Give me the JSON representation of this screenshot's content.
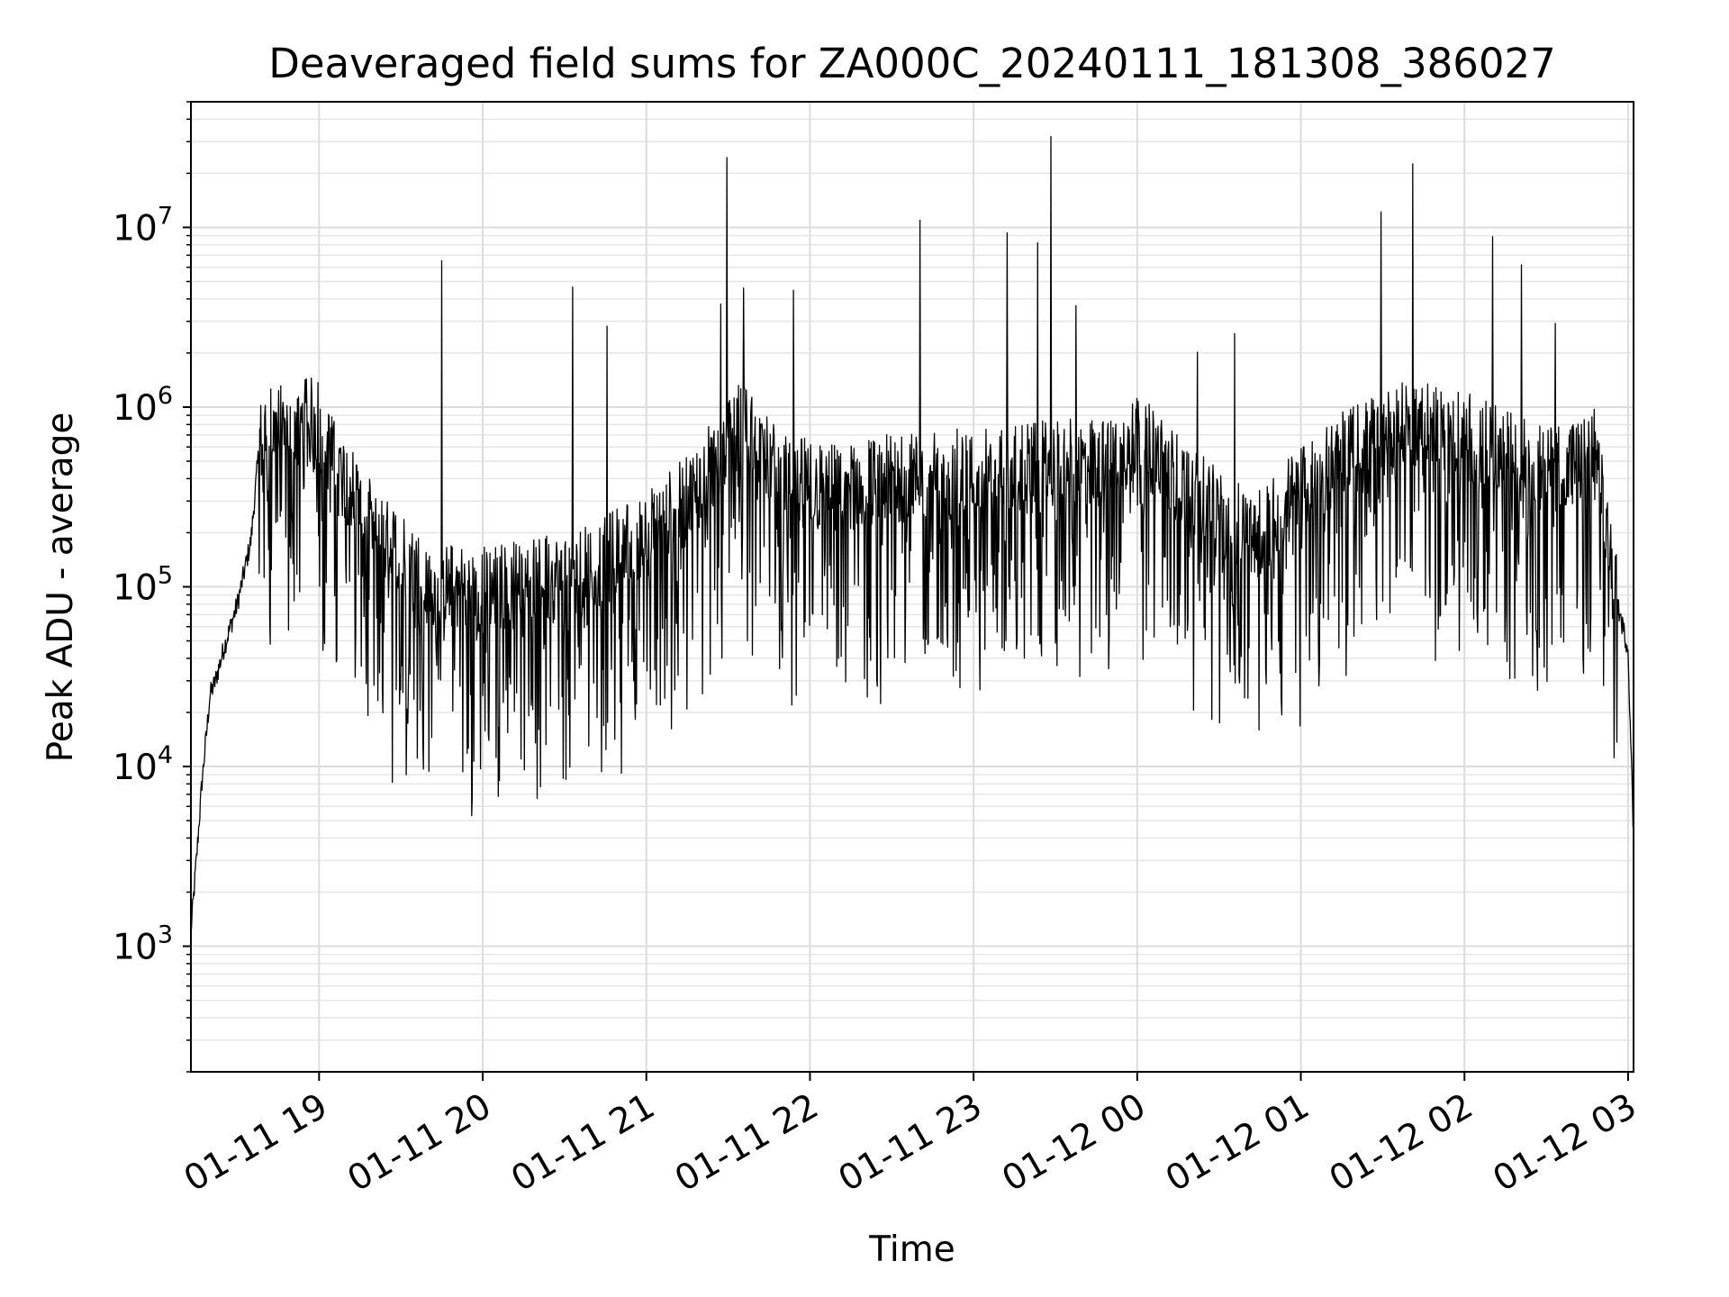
{
  "chart_data": {
    "type": "line",
    "title": "Deaveraged field sums for ZA000C_20240111_181308_386027",
    "xlabel": "Time",
    "ylabel": "Peak ADU - average",
    "yscale": "log",
    "xlim": [
      "2024-01-11T18:13",
      "2024-01-12T03:02"
    ],
    "ylim": [
      200,
      50000000
    ],
    "grid": true,
    "line_color": "#000000",
    "x_tick_labels": [
      {
        "t": "2024-01-11T19:00",
        "label": "01-11 19"
      },
      {
        "t": "2024-01-11T20:00",
        "label": "01-11 20"
      },
      {
        "t": "2024-01-11T21:00",
        "label": "01-11 21"
      },
      {
        "t": "2024-01-11T22:00",
        "label": "01-11 22"
      },
      {
        "t": "2024-01-11T23:00",
        "label": "01-11 23"
      },
      {
        "t": "2024-01-12T00:00",
        "label": "01-12 00"
      },
      {
        "t": "2024-01-12T01:00",
        "label": "01-12 01"
      },
      {
        "t": "2024-01-12T02:00",
        "label": "01-12 02"
      },
      {
        "t": "2024-01-12T03:00",
        "label": "01-12 03"
      }
    ],
    "y_tick_labels": [
      {
        "value": 1000,
        "base": "10",
        "exp": "3"
      },
      {
        "value": 10000,
        "base": "10",
        "exp": "4"
      },
      {
        "value": 100000,
        "base": "10",
        "exp": "5"
      },
      {
        "value": 1000000,
        "base": "10",
        "exp": "6"
      },
      {
        "value": 10000000,
        "base": "10",
        "exp": "7"
      }
    ],
    "series": [
      {
        "x": [
          "2024-01-11T18:13",
          "2024-01-11T18:15",
          "2024-01-11T18:17",
          "2024-01-11T18:20",
          "2024-01-11T18:22",
          "2024-01-11T18:25",
          "2024-01-11T18:30",
          "2024-01-11T18:35",
          "2024-01-11T18:38",
          "2024-01-11T18:40",
          "2024-01-11T18:45",
          "2024-01-11T18:50",
          "2024-01-11T18:55",
          "2024-01-11T19:00",
          "2024-01-11T19:05",
          "2024-01-11T19:10",
          "2024-01-11T19:15",
          "2024-01-11T19:20",
          "2024-01-11T19:30",
          "2024-01-11T19:40",
          "2024-01-11T20:00",
          "2024-01-11T20:20",
          "2024-01-11T20:40",
          "2024-01-11T21:00",
          "2024-01-11T21:15",
          "2024-01-11T21:25",
          "2024-01-11T21:35",
          "2024-01-11T21:50",
          "2024-01-11T22:10",
          "2024-01-11T22:30",
          "2024-01-11T22:50",
          "2024-01-11T23:10",
          "2024-01-11T23:30",
          "2024-01-11T23:50",
          "2024-01-12T00:00",
          "2024-01-12T00:15",
          "2024-01-12T00:30",
          "2024-01-12T00:45",
          "2024-01-12T01:00",
          "2024-01-12T01:20",
          "2024-01-12T01:40",
          "2024-01-12T02:00",
          "2024-01-12T02:15",
          "2024-01-12T02:30",
          "2024-01-12T02:45",
          "2024-01-12T02:48",
          "2024-01-12T02:52",
          "2024-01-12T02:56",
          "2024-01-12T03:00",
          "2024-01-12T03:02"
        ],
        "y": [
          1200,
          3000,
          8000,
          25000,
          30000,
          45000,
          80000,
          180000,
          600000,
          700000,
          750000,
          800000,
          820000,
          850000,
          500000,
          400000,
          300000,
          200000,
          150000,
          100000,
          100000,
          105000,
          130000,
          200000,
          300000,
          500000,
          800000,
          400000,
          350000,
          400000,
          420000,
          450000,
          480000,
          500000,
          700000,
          400000,
          250000,
          200000,
          350000,
          600000,
          800000,
          700000,
          550000,
          450000,
          500000,
          600000,
          200000,
          80000,
          45000,
          4000
        ]
      }
    ]
  }
}
